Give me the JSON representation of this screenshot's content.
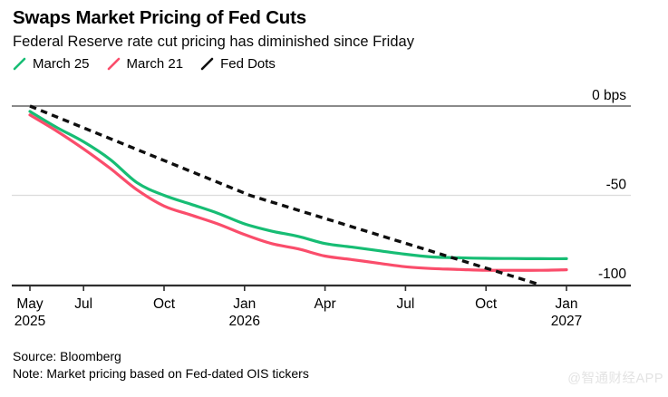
{
  "header": {
    "title": "Swaps Market Pricing of Fed Cuts",
    "subtitle": "Federal Reserve rate cut pricing has diminished since Friday"
  },
  "legend": {
    "items": [
      {
        "id": "march-25",
        "label": "March 25",
        "color": "#17bd74",
        "dashed": false
      },
      {
        "id": "march-21",
        "label": "March 21",
        "color": "#fa4d6b",
        "dashed": false
      },
      {
        "id": "fed-dots",
        "label": "Fed Dots",
        "color": "#0f0f0f",
        "dashed": true
      }
    ]
  },
  "chart_data": {
    "type": "line",
    "title": "Swaps Market Pricing of Fed Cuts",
    "subtitle": "Federal Reserve rate cut pricing has diminished since Friday",
    "unit": "bps",
    "x_range": [
      "May 2025",
      "Jan 2027"
    ],
    "x_unit": "months from May 2025",
    "ylim": [
      -100,
      0
    ],
    "grid": "horizontal-only",
    "legend_position": "top-left",
    "y_ticks": [
      {
        "v": 0,
        "label": "0 bps"
      },
      {
        "v": -50,
        "label": "-50"
      },
      {
        "v": -100,
        "label": "-100"
      }
    ],
    "x_ticks": [
      {
        "m": 0,
        "label": "May",
        "year": "2025"
      },
      {
        "m": 2,
        "label": "Jul"
      },
      {
        "m": 5,
        "label": "Oct"
      },
      {
        "m": 8,
        "label": "Jan",
        "year": "2026"
      },
      {
        "m": 11,
        "label": "Apr"
      },
      {
        "m": 14,
        "label": "Jul"
      },
      {
        "m": 17,
        "label": "Oct"
      },
      {
        "m": 20,
        "label": "Jan",
        "year": "2027"
      }
    ],
    "series": [
      {
        "name": "March 25",
        "id": "march-25",
        "color": "#17bd74",
        "dashed": false,
        "points": [
          [
            0,
            -3
          ],
          [
            1,
            -12
          ],
          [
            2,
            -20
          ],
          [
            3,
            -30
          ],
          [
            4,
            -43
          ],
          [
            5,
            -50
          ],
          [
            6,
            -55
          ],
          [
            7,
            -60
          ],
          [
            8,
            -66
          ],
          [
            9,
            -70
          ],
          [
            10,
            -73
          ],
          [
            11,
            -77
          ],
          [
            12,
            -79
          ],
          [
            13,
            -81
          ],
          [
            14,
            -83
          ],
          [
            15,
            -84.5
          ],
          [
            16,
            -85
          ],
          [
            17,
            -85.3
          ],
          [
            18,
            -85.4
          ],
          [
            19,
            -85.5
          ],
          [
            20,
            -85.5
          ]
        ]
      },
      {
        "name": "March 21",
        "id": "march-21",
        "color": "#fa4d6b",
        "dashed": false,
        "points": [
          [
            0,
            -5
          ],
          [
            1,
            -14
          ],
          [
            2,
            -24
          ],
          [
            3,
            -35
          ],
          [
            4,
            -47
          ],
          [
            5,
            -56
          ],
          [
            6,
            -61
          ],
          [
            7,
            -66
          ],
          [
            8,
            -72
          ],
          [
            9,
            -77
          ],
          [
            10,
            -80
          ],
          [
            11,
            -84
          ],
          [
            12,
            -86
          ],
          [
            13,
            -88
          ],
          [
            14,
            -90
          ],
          [
            15,
            -91
          ],
          [
            16,
            -91.5
          ],
          [
            17,
            -92
          ],
          [
            18,
            -92
          ],
          [
            19,
            -92
          ],
          [
            20,
            -91.7
          ]
        ]
      },
      {
        "name": "Fed Dots",
        "id": "fed-dots",
        "color": "#0f0f0f",
        "dashed": true,
        "points": [
          [
            0,
            0
          ],
          [
            8.2,
            -50
          ],
          [
            19,
            -100
          ]
        ]
      }
    ]
  },
  "footer": {
    "source": "Source: Bloomberg",
    "note": "Note: Market pricing based on Fed-dated OIS tickers",
    "watermark": "@智通财经APP"
  }
}
